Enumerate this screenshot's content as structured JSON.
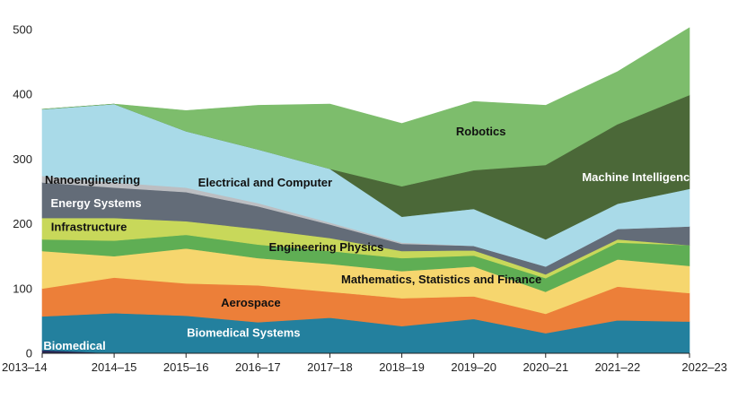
{
  "chart_data": {
    "type": "area",
    "stacked": true,
    "title": "",
    "xlabel": "",
    "ylabel": "",
    "ylim": [
      0,
      500
    ],
    "yticks": [
      0,
      100,
      200,
      300,
      400,
      500
    ],
    "categories": [
      "2013–14",
      "2014–15",
      "2015–16",
      "2016–17",
      "2017–18",
      "2018–19",
      "2019–20",
      "2020–21",
      "2021–22",
      "2022–23"
    ],
    "series": [
      {
        "name": "Biomedical",
        "color": "#2a2a5a",
        "label_color": "#ffffff",
        "values": [
          5,
          0,
          0,
          0,
          0,
          0,
          0,
          0,
          0,
          0
        ]
      },
      {
        "name": "Biomedical Systems",
        "color": "#23809e",
        "label_color": "#ffffff",
        "values": [
          52,
          62,
          58,
          48,
          55,
          42,
          53,
          31,
          51,
          49
        ]
      },
      {
        "name": "Aerospace",
        "color": "#ec7f39",
        "label_color": "#111111",
        "values": [
          43,
          55,
          50,
          57,
          40,
          43,
          35,
          30,
          52,
          44
        ]
      },
      {
        "name": "Mathematics, Statistics and Finance",
        "color": "#f6d66e",
        "label_color": "#111111",
        "values": [
          58,
          33,
          54,
          42,
          43,
          42,
          46,
          34,
          42,
          42
        ]
      },
      {
        "name": "Engineering Physics",
        "color": "#5fae54",
        "label_color": "#111111",
        "values": [
          18,
          24,
          21,
          21,
          20,
          20,
          17,
          21,
          26,
          32
        ]
      },
      {
        "name": "Infrastructure",
        "color": "#c8d85a",
        "label_color": "#111111",
        "values": [
          33,
          35,
          21,
          24,
          20,
          11,
          8,
          6,
          5,
          0
        ]
      },
      {
        "name": "Energy Systems",
        "color": "#636c78",
        "label_color": "#ffffff",
        "values": [
          55,
          47,
          45,
          35,
          21,
          11,
          7,
          12,
          16,
          29
        ]
      },
      {
        "name": "Nanoengineering",
        "color": "#bcbec2",
        "label_color": "#111111",
        "values": [
          10,
          8,
          7,
          5,
          3,
          2,
          0,
          0,
          0,
          0
        ]
      },
      {
        "name": "Electrical and Computer",
        "color": "#a9dae8",
        "label_color": "#111111",
        "values": [
          103,
          121,
          87,
          83,
          83,
          40,
          57,
          42,
          39,
          58
        ]
      },
      {
        "name": "Machine Intelligence",
        "color": "#4b6838",
        "label_color": "#ffffff",
        "values": [
          0,
          0,
          0,
          0,
          0,
          47,
          60,
          115,
          123,
          145
        ]
      },
      {
        "name": "Robotics",
        "color": "#7dbd6c",
        "label_color": "#111111",
        "values": [
          0,
          0,
          32,
          68,
          100,
          97,
          106,
          92,
          81,
          104
        ]
      }
    ],
    "annotations": [
      {
        "series": "Biomedical",
        "text": "Biomedical",
        "at": [
          0.45,
          12
        ]
      },
      {
        "series": "Biomedical Systems",
        "text": "Biomedical Systems",
        "at": [
          2.8,
          32
        ]
      },
      {
        "series": "Aerospace",
        "text": "Aerospace",
        "at": [
          2.9,
          78
        ]
      },
      {
        "series": "Mathematics, Statistics and Finance",
        "text": "Mathematics, Statistics and Finance",
        "at": [
          5.55,
          114
        ]
      },
      {
        "series": "Engineering Physics",
        "text": "Engineering Physics",
        "at": [
          3.95,
          164
        ]
      },
      {
        "series": "Infrastructure",
        "text": "Infrastructure",
        "at": [
          0.65,
          195
        ]
      },
      {
        "series": "Energy Systems",
        "text": "Energy Systems",
        "at": [
          0.75,
          232
        ]
      },
      {
        "series": "Nanoengineering",
        "text": "Nanoengineering",
        "at": [
          0.7,
          268
        ]
      },
      {
        "series": "Electrical and Computer",
        "text": "Electrical and Computer",
        "at": [
          3.1,
          264
        ]
      },
      {
        "series": "Machine Intelligence",
        "text": "Machine Intelligence",
        "at": [
          8.3,
          272
        ]
      },
      {
        "series": "Robotics",
        "text": "Robotics",
        "at": [
          6.1,
          343
        ]
      }
    ]
  }
}
